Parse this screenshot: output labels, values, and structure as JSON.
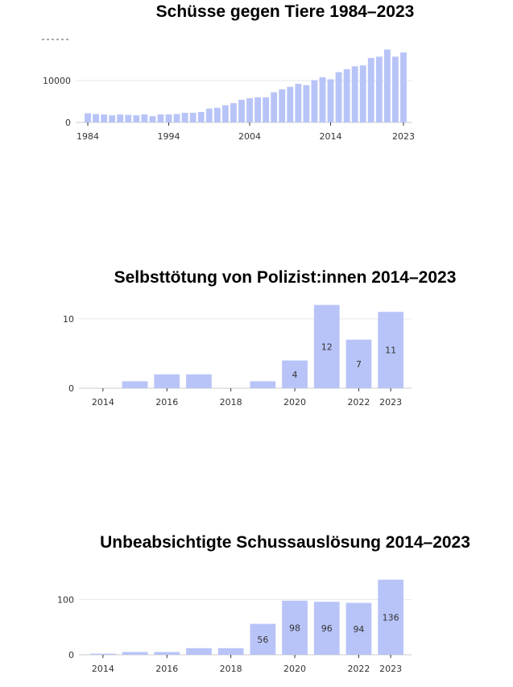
{
  "chart_data": [
    {
      "type": "bar",
      "title": "Schüsse gegen Tiere 1984–2023",
      "x": [
        1984,
        1985,
        1986,
        1987,
        1988,
        1989,
        1990,
        1991,
        1992,
        1993,
        1994,
        1995,
        1996,
        1997,
        1998,
        1999,
        2000,
        2001,
        2002,
        2003,
        2004,
        2005,
        2006,
        2007,
        2008,
        2009,
        2010,
        2011,
        2012,
        2013,
        2014,
        2015,
        2016,
        2017,
        2018,
        2019,
        2020,
        2021,
        2022,
        2023
      ],
      "values": [
        2200,
        2000,
        1900,
        1700,
        1900,
        1800,
        1700,
        1900,
        1500,
        1900,
        1900,
        2000,
        2300,
        2300,
        2500,
        3300,
        3500,
        4100,
        4600,
        5400,
        5800,
        6000,
        6000,
        7200,
        7900,
        8500,
        9200,
        8900,
        10100,
        10800,
        10300,
        12000,
        12700,
        13400,
        13600,
        15400,
        15700,
        17400,
        15700,
        16700
      ],
      "ticks": [
        1984,
        1994,
        2004,
        2014,
        2023
      ],
      "yticks": [
        0,
        10000
      ],
      "ylim": [
        0,
        20000
      ]
    },
    {
      "type": "bar",
      "title": "Selbsttötung von Polizist:innen 2014–2023",
      "x": [
        2014,
        2015,
        2016,
        2017,
        2018,
        2019,
        2020,
        2021,
        2022,
        2023
      ],
      "values": [
        0,
        1,
        2,
        2,
        0,
        1,
        4,
        12,
        7,
        11
      ],
      "data_labels": {
        "2020": "4",
        "2021": "12",
        "2022": "7",
        "2023": "11"
      },
      "ticks": [
        2014,
        2016,
        2018,
        2020,
        2022,
        2023
      ],
      "yticks": [
        0,
        10
      ],
      "ylim": [
        0,
        13
      ]
    },
    {
      "type": "bar",
      "title": "Unbeabsichtigte Schussauslösung 2014–2023",
      "x": [
        2014,
        2015,
        2016,
        2017,
        2018,
        2019,
        2020,
        2021,
        2022,
        2023
      ],
      "values": [
        2,
        5,
        5,
        12,
        12,
        56,
        98,
        96,
        94,
        136
      ],
      "data_labels": {
        "2019": "56",
        "2020": "98",
        "2021": "96",
        "2022": "94",
        "2023": "136"
      },
      "ticks": [
        2014,
        2016,
        2018,
        2020,
        2022,
        2023
      ],
      "yticks": [
        0,
        100
      ],
      "ylim": [
        0,
        140
      ]
    }
  ],
  "colors": {
    "bar": "#b8c4f8",
    "grid": "#e6e6e6",
    "axis": "#cccccc"
  }
}
